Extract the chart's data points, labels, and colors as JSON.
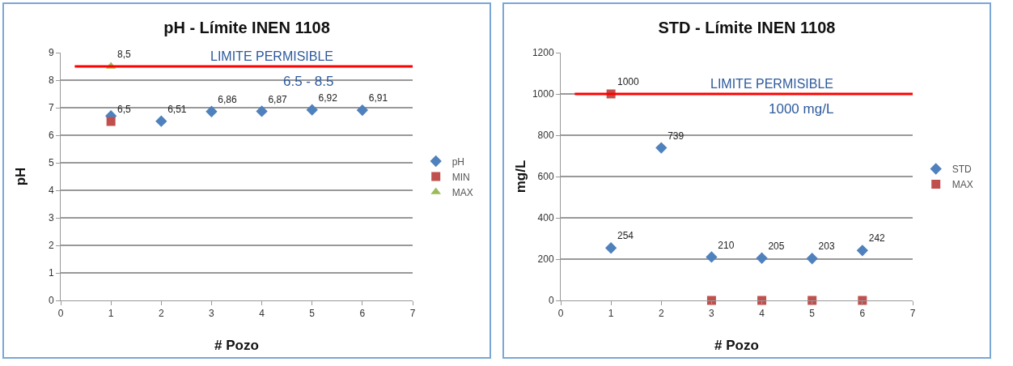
{
  "chart_data": [
    {
      "type": "scatter",
      "title": "pH - Límite INEN 1108",
      "xlabel": "# Pozo",
      "ylabel": "pH",
      "xlim": [
        0,
        7
      ],
      "ylim": [
        0,
        9
      ],
      "xticks": [
        0,
        1,
        2,
        3,
        4,
        5,
        6,
        7
      ],
      "yticks": [
        0,
        1,
        2,
        3,
        4,
        5,
        6,
        7,
        8,
        9
      ],
      "grid": "y",
      "legend": "right",
      "series": [
        {
          "name": "pH",
          "color": "#4f81bd",
          "marker": "diamond",
          "x": [
            1,
            2,
            3,
            4,
            5,
            6
          ],
          "values": [
            6.7,
            6.51,
            6.86,
            6.87,
            6.92,
            6.91
          ],
          "value_labels": [
            null,
            "6,51",
            "6,86",
            "6,87",
            "6,92",
            "6,91"
          ]
        },
        {
          "name": "MIN",
          "color": "#c0504d",
          "marker": "square",
          "x": [
            1
          ],
          "values": [
            6.5
          ],
          "value_labels": [
            "6,5"
          ]
        },
        {
          "name": "MAX",
          "color": "#9bbb59",
          "marker": "triangle",
          "x": [
            1
          ],
          "values": [
            8.5
          ],
          "value_labels": [
            "8,5"
          ]
        }
      ],
      "ref_lines": [
        {
          "axis": "y",
          "value": 8.5,
          "color": "#ff0000",
          "line_style": "solid",
          "label": "LIMITE PERMISIBLE"
        }
      ],
      "annotations": [
        "6.5 - 8.5"
      ]
    },
    {
      "type": "scatter",
      "title": "STD - Límite INEN 1108",
      "xlabel": "# Pozo",
      "ylabel": "mg/L",
      "xlim": [
        0,
        7
      ],
      "ylim": [
        0,
        1200
      ],
      "xticks": [
        0,
        1,
        2,
        3,
        4,
        5,
        6,
        7
      ],
      "yticks": [
        0,
        200,
        400,
        600,
        800,
        1000,
        1200
      ],
      "grid": "y",
      "legend": "right",
      "series": [
        {
          "name": "STD",
          "color": "#4f81bd",
          "marker": "diamond",
          "x": [
            1,
            2,
            3,
            4,
            5,
            6
          ],
          "values": [
            254,
            739,
            210,
            205,
            203,
            242
          ],
          "value_labels": [
            "254",
            "739",
            "210",
            "205",
            "203",
            "242"
          ]
        },
        {
          "name": "MAX",
          "color": "#c0504d",
          "marker": "square",
          "x": [
            1,
            3,
            4,
            5,
            6
          ],
          "values": [
            1000,
            0,
            0,
            0,
            0
          ],
          "value_labels": [
            "1000",
            null,
            null,
            null,
            null
          ]
        }
      ],
      "ref_lines": [
        {
          "axis": "y",
          "value": 1000,
          "color": "#ff0000",
          "line_style": "solid",
          "label": "LIMITE PERMISIBLE"
        }
      ],
      "annotations": [
        "1000 mg/L"
      ]
    }
  ]
}
